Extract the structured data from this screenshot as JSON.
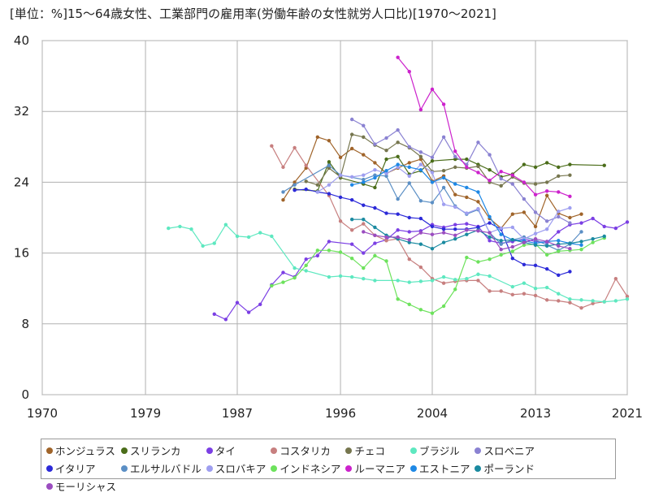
{
  "chart_data": {
    "type": "line",
    "title": "[単位：%]15～64歳女性、工業部門の雇用率(労働年齢の女性就労人口比)[1970～2021]",
    "xlabel": "",
    "ylabel": "",
    "xlim": [
      1970,
      2021
    ],
    "ylim": [
      0,
      40
    ],
    "xticks": [
      1970,
      1979,
      1987,
      1996,
      2004,
      2013,
      2021
    ],
    "yticks": [
      0,
      8,
      16,
      24,
      32,
      40
    ],
    "grid": true,
    "legend_position": "bottom",
    "series": [
      {
        "name": "ホンジュラス",
        "color": "#a0642a",
        "x": [
          1991,
          1992,
          1993,
          1994,
          1995,
          1996,
          1997,
          1998,
          1999,
          2000,
          2001,
          2002,
          2003,
          2004,
          2005,
          2006,
          2007,
          2008,
          2009,
          2010,
          2011,
          2012,
          2013,
          2014,
          2015,
          2016,
          2017
        ],
        "y": [
          22.0,
          24.0,
          25.6,
          29.1,
          28.7,
          26.8,
          27.8,
          27.1,
          26.2,
          25.0,
          25.6,
          26.2,
          26.6,
          24.1,
          24.7,
          22.6,
          22.3,
          21.8,
          19.9,
          18.8,
          20.4,
          20.6,
          19.0,
          22.5,
          20.5,
          20.0,
          20.4
        ]
      },
      {
        "name": "スリランカ",
        "color": "#4b6d1a",
        "x": [
          1992,
          1994,
          1995,
          1996,
          1998,
          1999,
          2000,
          2001,
          2002,
          2003,
          2004,
          2006,
          2007,
          2008,
          2009,
          2010,
          2011,
          2012,
          2013,
          2014,
          2015,
          2016,
          2019
        ],
        "y": [
          23.2,
          23.0,
          26.3,
          24.5,
          23.8,
          23.4,
          26.6,
          26.9,
          24.9,
          25.3,
          26.4,
          26.6,
          26.6,
          26.0,
          25.4,
          24.6,
          24.9,
          26.0,
          25.7,
          26.2,
          25.7,
          26.0,
          25.9
        ]
      },
      {
        "name": "タイ",
        "color": "#7b3fe4",
        "x": [
          1985,
          1986,
          1987,
          1988,
          1989,
          1990,
          1991,
          1992,
          1993,
          1994,
          1995,
          1997,
          1998,
          1999,
          2000,
          2001,
          2002,
          2003,
          2004,
          2005,
          2006,
          2007,
          2008,
          2009,
          2010,
          2011,
          2012,
          2013,
          2014,
          2015,
          2016,
          2017,
          2018,
          2019,
          2020,
          2021
        ],
        "y": [
          9.1,
          8.5,
          10.4,
          9.3,
          10.2,
          12.4,
          13.8,
          13.3,
          15.3,
          15.7,
          17.3,
          17.0,
          16.0,
          17.1,
          17.5,
          18.6,
          18.4,
          18.5,
          19.2,
          18.9,
          19.2,
          19.3,
          19.0,
          17.4,
          17.1,
          17.3,
          17.6,
          17.3,
          17.2,
          18.4,
          19.2,
          19.4,
          19.9,
          19.0,
          18.8,
          19.5
        ]
      },
      {
        "name": "コスタリカ",
        "color": "#c77f7f",
        "x": [
          1990,
          1991,
          1992,
          1993,
          1995,
          1996,
          1997,
          1998,
          1999,
          2000,
          2001,
          2002,
          2003,
          2004,
          2005,
          2006,
          2007,
          2008,
          2009,
          2010,
          2011,
          2012,
          2013,
          2014,
          2015,
          2016,
          2017,
          2018,
          2019,
          2020,
          2021
        ],
        "y": [
          28.1,
          25.7,
          27.9,
          25.9,
          22.5,
          19.6,
          18.6,
          19.3,
          18.0,
          17.4,
          17.6,
          15.3,
          14.4,
          13.1,
          12.6,
          12.8,
          12.9,
          12.9,
          11.7,
          11.7,
          11.3,
          11.4,
          11.2,
          10.7,
          10.6,
          10.4,
          9.8,
          10.3,
          10.5,
          13.1,
          11.1
        ]
      },
      {
        "name": "チェコ",
        "color": "#76764e",
        "x": [
          1993,
          1994,
          1995,
          1996,
          1997,
          1998,
          1999,
          2000,
          2001,
          2002,
          2003,
          2004,
          2005,
          2006,
          2007,
          2008,
          2009,
          2010,
          2011,
          2012,
          2013,
          2014,
          2015,
          2016
        ],
        "y": [
          24.1,
          23.7,
          25.6,
          24.6,
          29.4,
          29.1,
          28.2,
          27.6,
          28.5,
          27.9,
          26.9,
          25.2,
          25.3,
          25.7,
          25.6,
          25.8,
          24.0,
          23.6,
          24.6,
          23.9,
          23.8,
          24.0,
          24.7,
          24.8
        ]
      },
      {
        "name": "ブラジル",
        "color": "#5ee8c0",
        "x": [
          1981,
          1982,
          1983,
          1984,
          1985,
          1986,
          1987,
          1988,
          1989,
          1990,
          1992,
          1993,
          1995,
          1996,
          1997,
          1998,
          1999,
          2001,
          2002,
          2003,
          2004,
          2005,
          2006,
          2007,
          2008,
          2009,
          2011,
          2012,
          2013,
          2014,
          2015,
          2016,
          2017,
          2018,
          2019,
          2020,
          2021
        ],
        "y": [
          18.8,
          19.0,
          18.7,
          16.8,
          17.1,
          19.2,
          17.9,
          17.8,
          18.3,
          17.9,
          14.3,
          14.0,
          13.3,
          13.4,
          13.3,
          13.1,
          12.9,
          12.9,
          12.7,
          12.8,
          12.9,
          13.3,
          13.0,
          13.1,
          13.6,
          13.4,
          12.2,
          12.6,
          12.0,
          12.1,
          11.4,
          10.8,
          10.7,
          10.6,
          10.5,
          10.6,
          10.8
        ]
      },
      {
        "name": "スロベニア",
        "color": "#8a82d2",
        "x": [
          1997,
          1998,
          1999,
          2000,
          2001,
          2002,
          2003,
          2004,
          2005,
          2006,
          2007,
          2008,
          2009,
          2010,
          2011,
          2012,
          2013,
          2014,
          2015,
          2016
        ],
        "y": [
          31.1,
          30.4,
          28.3,
          29.0,
          29.9,
          28.0,
          27.4,
          26.8,
          29.1,
          26.9,
          26.0,
          28.5,
          27.1,
          24.4,
          23.8,
          22.1,
          20.6,
          19.6,
          20.1,
          19.4
        ]
      },
      {
        "name": "イタリア",
        "color": "#2c2ad8",
        "x": [
          1992,
          1993,
          1994,
          1995,
          1996,
          1997,
          1998,
          1999,
          2000,
          2001,
          2002,
          2003,
          2004,
          2005,
          2006,
          2007,
          2008,
          2009,
          2010,
          2011,
          2012,
          2013,
          2014,
          2015,
          2016
        ],
        "y": [
          23.1,
          23.2,
          22.9,
          22.7,
          22.3,
          22.0,
          21.4,
          21.1,
          20.5,
          20.4,
          20.0,
          19.9,
          19.0,
          18.7,
          18.7,
          18.7,
          18.9,
          19.4,
          18.7,
          15.4,
          14.7,
          14.6,
          14.2,
          13.5,
          13.9
        ]
      },
      {
        "name": "エルサルバドル",
        "color": "#5b8fc5",
        "x": [
          1991,
          1992,
          1995,
          1996,
          1998,
          1999,
          2000,
          2001,
          2002,
          2003,
          2004,
          2005,
          2006,
          2007,
          2008,
          2009,
          2010,
          2011,
          2012,
          2013,
          2014,
          2015,
          2016,
          2017
        ],
        "y": [
          22.9,
          23.7,
          25.9,
          24.8,
          24.3,
          24.8,
          24.7,
          22.1,
          23.9,
          21.9,
          21.7,
          23.4,
          21.3,
          20.4,
          20.9,
          18.3,
          17.0,
          17.5,
          17.8,
          17.5,
          16.9,
          16.3,
          17.0,
          18.4
        ]
      },
      {
        "name": "スロバキア",
        "color": "#9e9ef0",
        "x": [
          1994,
          1995,
          1996,
          1997,
          1998,
          1999,
          2000,
          2001,
          2002,
          2003,
          2004,
          2005,
          2006,
          2007,
          2008,
          2009,
          2010,
          2011,
          2012,
          2013,
          2014,
          2015,
          2016
        ],
        "y": [
          22.9,
          23.7,
          24.8,
          24.6,
          24.8,
          25.4,
          25.0,
          25.7,
          24.7,
          26.0,
          25.1,
          21.5,
          21.2,
          20.5,
          21.0,
          18.3,
          18.8,
          18.9,
          17.6,
          18.2,
          18.7,
          20.7,
          21.1
        ]
      },
      {
        "name": "インドネシア",
        "color": "#6de25c",
        "x": [
          1990,
          1991,
          1992,
          1993,
          1994,
          1995,
          1996,
          1997,
          1998,
          1999,
          2000,
          2001,
          2002,
          2003,
          2004,
          2005,
          2006,
          2007,
          2008,
          2009,
          2010,
          2011,
          2012,
          2013,
          2014,
          2015,
          2016,
          2017,
          2018,
          2019
        ],
        "y": [
          12.3,
          12.7,
          13.2,
          14.6,
          16.3,
          16.3,
          16.1,
          15.4,
          14.3,
          15.7,
          15.1,
          10.8,
          10.2,
          9.6,
          9.2,
          10.0,
          11.9,
          15.5,
          15.0,
          15.3,
          15.8,
          16.2,
          16.9,
          17.0,
          15.8,
          16.2,
          16.3,
          16.4,
          17.2,
          17.7
        ]
      },
      {
        "name": "ルーマニア",
        "color": "#cc22cc",
        "x": [
          2001,
          2002,
          2003,
          2004,
          2005,
          2006,
          2007,
          2008,
          2009,
          2010,
          2011,
          2012,
          2013,
          2014,
          2015,
          2016
        ],
        "y": [
          38.1,
          36.5,
          32.2,
          34.5,
          32.8,
          27.5,
          25.7,
          25.1,
          24.2,
          25.2,
          24.8,
          24.0,
          22.6,
          23.0,
          22.9,
          22.4
        ]
      },
      {
        "name": "エストニア",
        "color": "#1e88e5",
        "x": [
          1997,
          1998,
          1999,
          2000,
          2001,
          2002,
          2003,
          2004,
          2005,
          2006,
          2007,
          2008,
          2009,
          2010,
          2011,
          2012,
          2013,
          2014,
          2015,
          2016,
          2017
        ],
        "y": [
          23.7,
          24.0,
          24.5,
          25.3,
          26.0,
          25.7,
          25.4,
          24.0,
          24.5,
          23.8,
          23.4,
          22.9,
          20.1,
          18.1,
          17.5,
          17.4,
          17.1,
          17.3,
          17.4,
          17.1,
          16.9
        ]
      },
      {
        "name": "ポーランド",
        "color": "#1a8aa0",
        "x": [
          1997,
          1998,
          1999,
          2000,
          2001,
          2002,
          2003,
          2004,
          2005,
          2006,
          2007,
          2008,
          2009,
          2010,
          2011,
          2012,
          2013,
          2014,
          2015,
          2016,
          2017,
          2018,
          2019
        ],
        "y": [
          19.8,
          19.8,
          18.9,
          18.0,
          17.6,
          17.2,
          17.0,
          16.5,
          17.2,
          17.6,
          18.1,
          18.6,
          17.8,
          17.4,
          17.5,
          17.2,
          16.9,
          16.8,
          17.0,
          17.1,
          17.3,
          17.6,
          17.9
        ]
      },
      {
        "name": "モーリシャス",
        "color": "#9b4dc0",
        "x": [
          1998,
          1999,
          2000,
          2001,
          2002,
          2003,
          2004,
          2005,
          2006,
          2007,
          2008,
          2009,
          2010,
          2011,
          2012,
          2013,
          2014,
          2015,
          2016
        ],
        "y": [
          18.4,
          18.0,
          17.8,
          17.8,
          17.5,
          18.3,
          18.1,
          18.3,
          18.0,
          18.6,
          18.5,
          18.3,
          16.4,
          16.7,
          17.2,
          17.6,
          17.3,
          16.8,
          16.5
        ]
      }
    ]
  }
}
